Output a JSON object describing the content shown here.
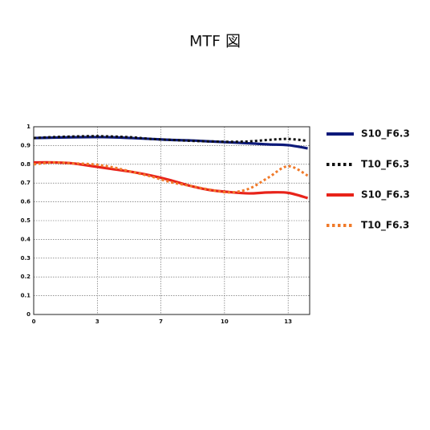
{
  "chart_data": {
    "type": "line",
    "title": "MTF 図",
    "x": [
      0,
      1,
      2,
      3,
      4,
      5,
      6,
      7,
      8,
      9,
      10,
      11,
      12,
      13,
      14
    ],
    "series": [
      {
        "name": "S10_F6.3",
        "color": "#0d1a7a",
        "style": "solid",
        "values": [
          0.94,
          0.942,
          0.944,
          0.945,
          0.944,
          0.94,
          0.935,
          0.93,
          0.927,
          0.922,
          0.917,
          0.912,
          0.906,
          0.902,
          0.885
        ]
      },
      {
        "name": "T10_F6.3",
        "color": "#111111",
        "style": "dotted",
        "values": [
          0.94,
          0.945,
          0.948,
          0.95,
          0.948,
          0.944,
          0.935,
          0.93,
          0.925,
          0.922,
          0.92,
          0.922,
          0.93,
          0.935,
          0.925
        ]
      },
      {
        "name": "S10_F6.3",
        "color": "#e8231a",
        "style": "solid",
        "values": [
          0.81,
          0.81,
          0.805,
          0.79,
          0.775,
          0.76,
          0.74,
          0.715,
          0.685,
          0.663,
          0.652,
          0.645,
          0.65,
          0.648,
          0.62
        ]
      },
      {
        "name": "T10_F6.3",
        "color": "#f07a2a",
        "style": "dotted",
        "values": [
          0.8,
          0.81,
          0.805,
          0.8,
          0.785,
          0.76,
          0.735,
          0.705,
          0.685,
          0.665,
          0.65,
          0.67,
          0.73,
          0.79,
          0.74
        ]
      }
    ],
    "xlim": [
      0,
      14.1
    ],
    "xticks": [
      0,
      {
        "value": 3.25,
        "label": "3"
      },
      {
        "value": 6.5,
        "label": "7"
      },
      {
        "value": 9.75,
        "label": "10"
      },
      13
    ],
    "ylim": [
      0,
      1
    ],
    "yticks": [
      0,
      0.1,
      0.2,
      0.3,
      0.4,
      0.5,
      0.6,
      0.7,
      0.8,
      0.9,
      1
    ],
    "grid": true,
    "legend": "right"
  }
}
